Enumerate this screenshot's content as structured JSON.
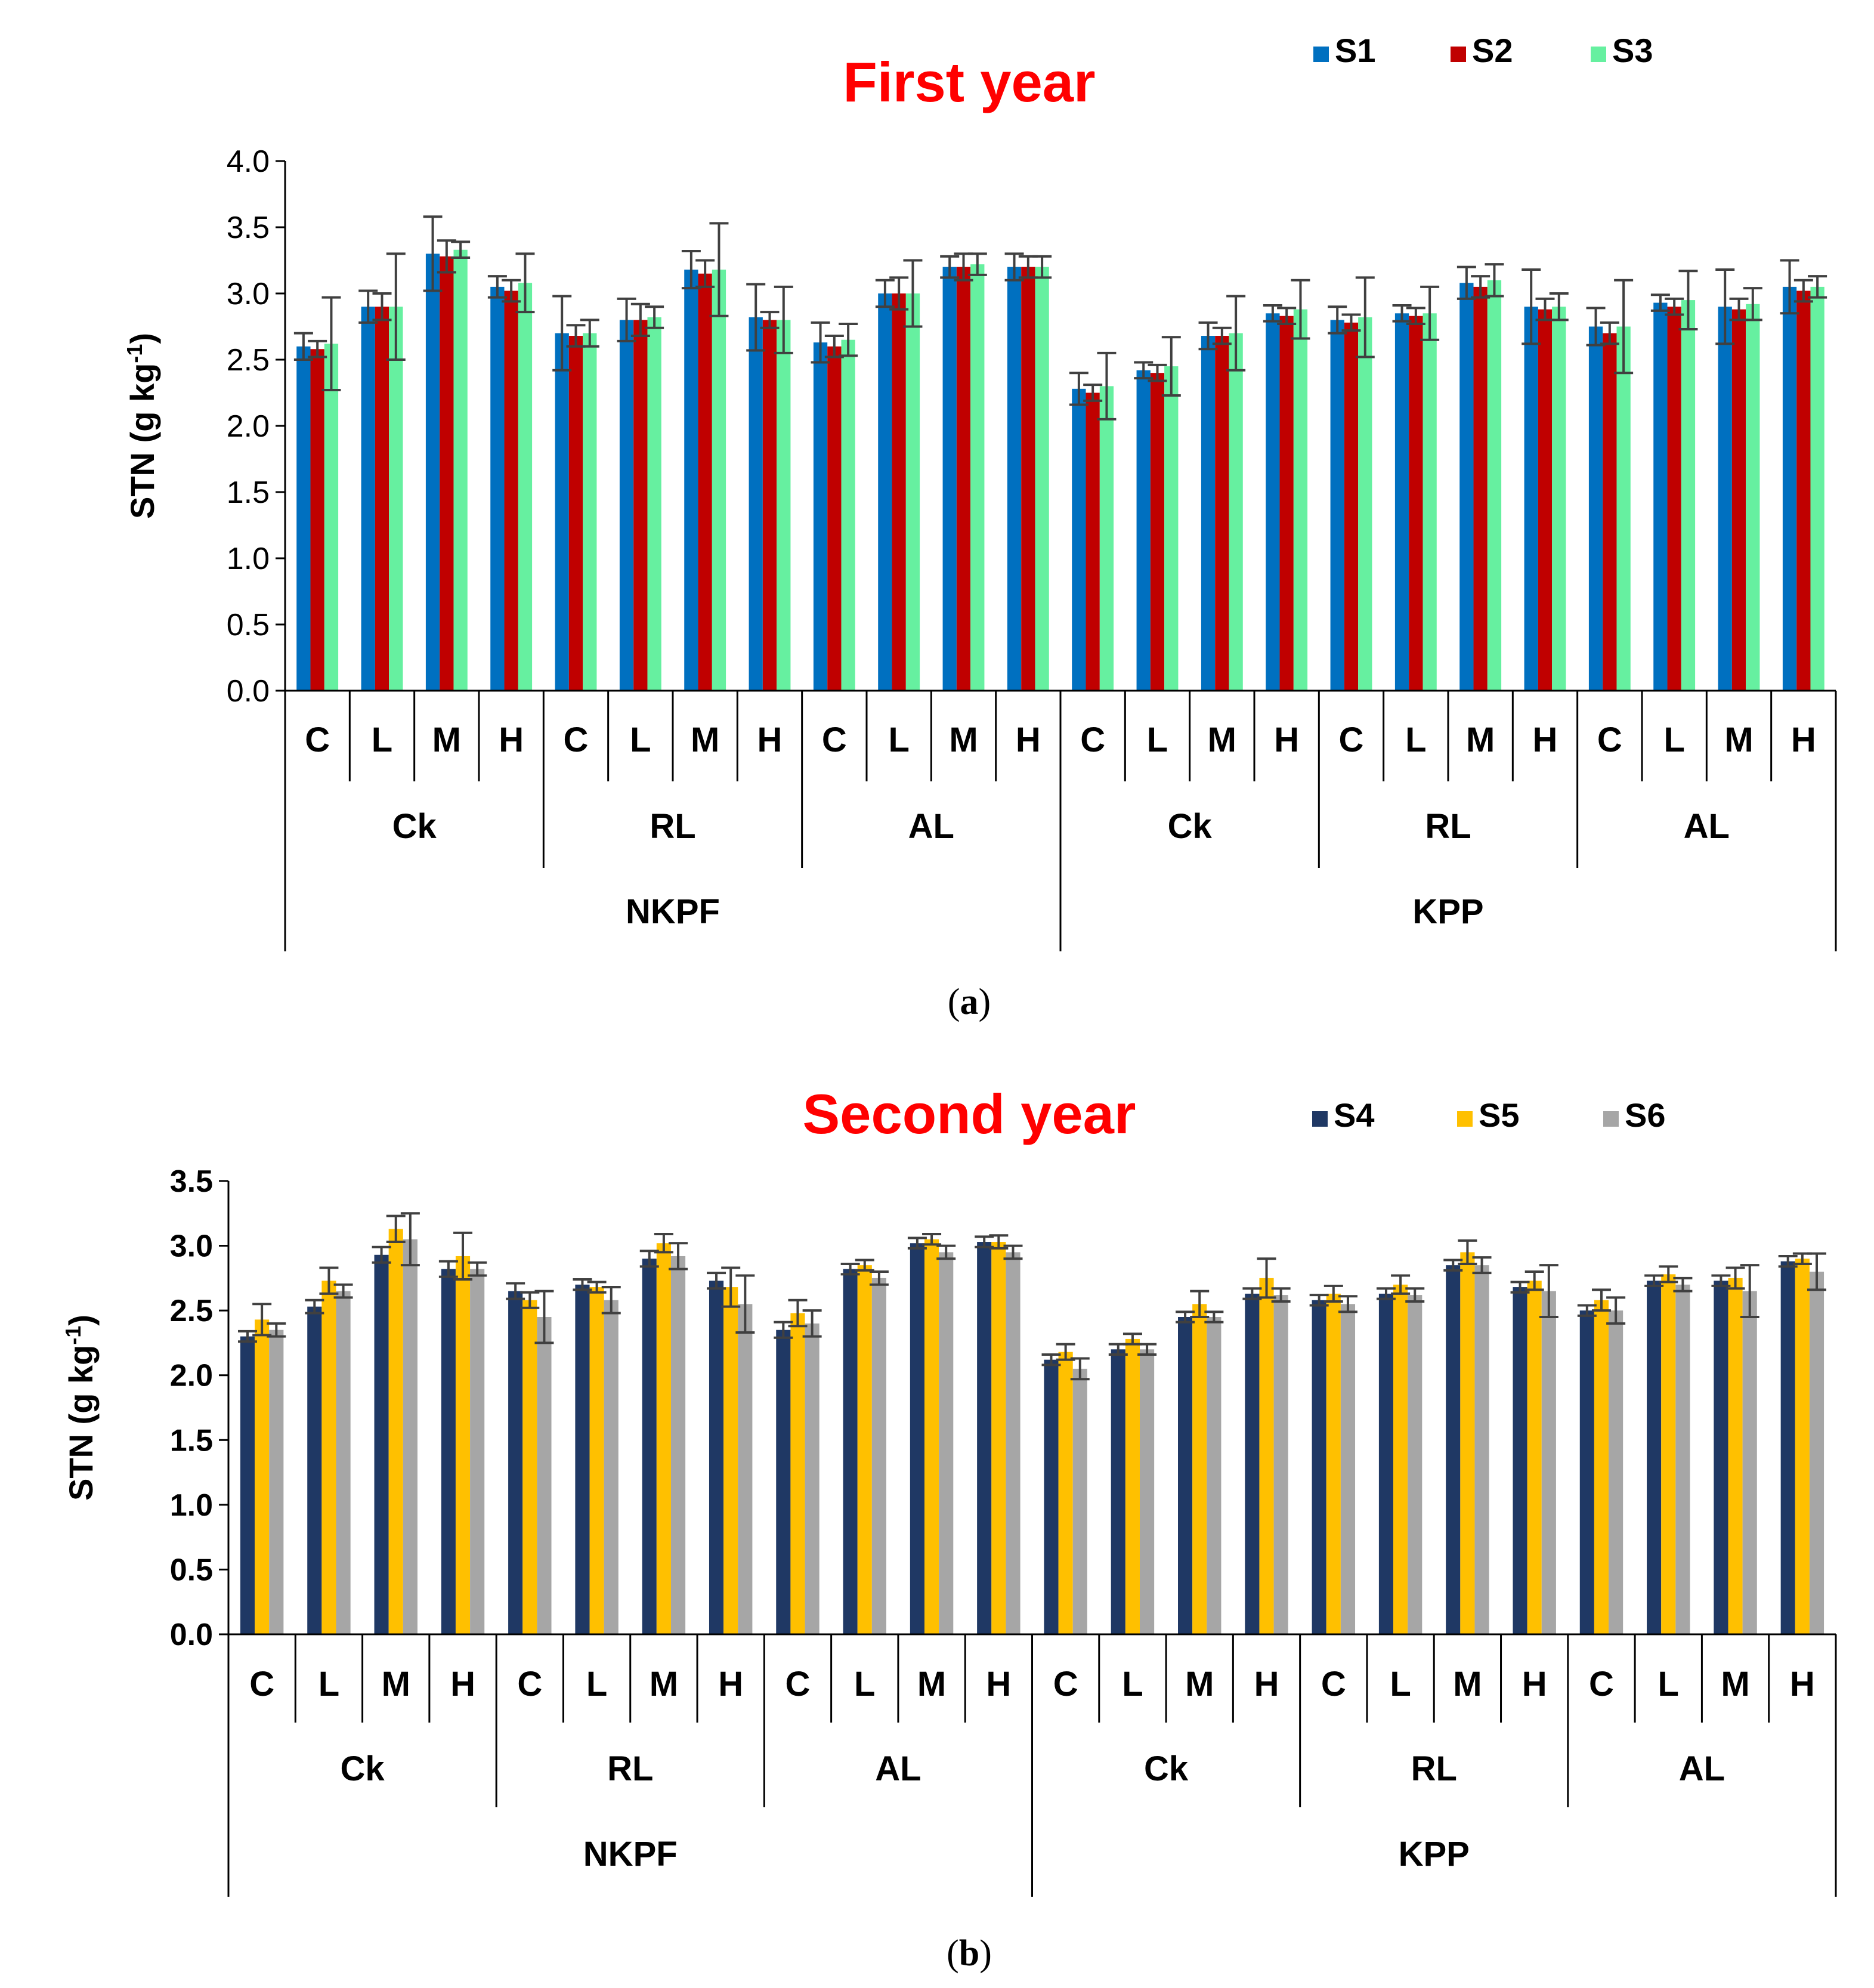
{
  "chart_data": [
    {
      "type": "bar",
      "panel_label": "a",
      "title": "First year",
      "ylabel": "STN (g kg",
      "ylabel_sup": "-1",
      "ylabel_close": ")",
      "ylim": [
        0,
        4.0
      ],
      "ytick_labels": [
        "0.0",
        "0.5",
        "1.0",
        "1.5",
        "2.0",
        "2.5",
        "3.0",
        "3.5",
        "4.0"
      ],
      "legend_position": "top-right",
      "level1": [
        "C",
        "L",
        "M",
        "H"
      ],
      "level2": [
        "Ck",
        "RL",
        "AL"
      ],
      "level3": [
        "NKPF",
        "KPP"
      ],
      "series": [
        {
          "name": "S1",
          "color": "#0070c0",
          "values": [
            2.6,
            2.9,
            3.3,
            3.05,
            2.7,
            2.8,
            3.18,
            2.82,
            2.63,
            3.0,
            3.2,
            3.2,
            2.28,
            2.42,
            2.68,
            2.85,
            2.8,
            2.85,
            3.08,
            2.9,
            2.75,
            2.93,
            2.9,
            3.05
          ],
          "errors": [
            0.1,
            0.12,
            0.28,
            0.08,
            0.28,
            0.16,
            0.14,
            0.25,
            0.15,
            0.1,
            0.08,
            0.1,
            0.12,
            0.06,
            0.1,
            0.06,
            0.1,
            0.06,
            0.12,
            0.28,
            0.14,
            0.06,
            0.28,
            0.2
          ]
        },
        {
          "name": "S2",
          "color": "#c00000",
          "values": [
            2.58,
            2.9,
            3.28,
            3.02,
            2.68,
            2.8,
            3.15,
            2.8,
            2.6,
            3.0,
            3.2,
            3.2,
            2.25,
            2.4,
            2.68,
            2.83,
            2.78,
            2.83,
            3.05,
            2.88,
            2.7,
            2.9,
            2.88,
            3.02
          ],
          "errors": [
            0.06,
            0.1,
            0.12,
            0.08,
            0.08,
            0.12,
            0.1,
            0.06,
            0.08,
            0.12,
            0.1,
            0.08,
            0.06,
            0.06,
            0.06,
            0.06,
            0.06,
            0.06,
            0.08,
            0.08,
            0.08,
            0.06,
            0.08,
            0.08
          ]
        },
        {
          "name": "S3",
          "color": "#66f0a0",
          "values": [
            2.62,
            2.9,
            3.33,
            3.08,
            2.7,
            2.82,
            3.18,
            2.8,
            2.65,
            3.0,
            3.22,
            3.2,
            2.3,
            2.45,
            2.7,
            2.88,
            2.82,
            2.85,
            3.1,
            2.9,
            2.75,
            2.95,
            2.92,
            3.05
          ],
          "errors": [
            0.35,
            0.4,
            0.06,
            0.22,
            0.1,
            0.08,
            0.35,
            0.25,
            0.12,
            0.25,
            0.08,
            0.08,
            0.25,
            0.22,
            0.28,
            0.22,
            0.3,
            0.2,
            0.12,
            0.1,
            0.35,
            0.22,
            0.12,
            0.08
          ]
        }
      ]
    },
    {
      "type": "bar",
      "panel_label": "b",
      "title": "Second year",
      "ylabel": "STN (g kg",
      "ylabel_sup": "-1",
      "ylabel_close": ")",
      "ylim": [
        0,
        3.5
      ],
      "ytick_labels": [
        "0.0",
        "0.5",
        "1.0",
        "1.5",
        "2.0",
        "2.5",
        "3.0",
        "3.5"
      ],
      "legend_position": "top-right",
      "level1": [
        "C",
        "L",
        "M",
        "H"
      ],
      "level2": [
        "Ck",
        "RL",
        "AL"
      ],
      "level3": [
        "NKPF",
        "KPP"
      ],
      "series": [
        {
          "name": "S4",
          "color": "#1f3864",
          "values": [
            2.3,
            2.53,
            2.93,
            2.82,
            2.65,
            2.7,
            2.9,
            2.73,
            2.35,
            2.82,
            3.02,
            3.03,
            2.12,
            2.2,
            2.45,
            2.63,
            2.58,
            2.63,
            2.85,
            2.68,
            2.5,
            2.73,
            2.73,
            2.88
          ],
          "errors": [
            0.04,
            0.05,
            0.06,
            0.06,
            0.06,
            0.04,
            0.06,
            0.06,
            0.06,
            0.04,
            0.04,
            0.04,
            0.04,
            0.04,
            0.04,
            0.04,
            0.04,
            0.04,
            0.04,
            0.04,
            0.04,
            0.04,
            0.04,
            0.04
          ]
        },
        {
          "name": "S5",
          "color": "#ffc000",
          "values": [
            2.43,
            2.73,
            3.13,
            2.92,
            2.58,
            2.68,
            3.02,
            2.68,
            2.48,
            2.85,
            3.05,
            3.03,
            2.18,
            2.28,
            2.55,
            2.75,
            2.63,
            2.7,
            2.95,
            2.73,
            2.58,
            2.78,
            2.75,
            2.9
          ],
          "errors": [
            0.12,
            0.1,
            0.1,
            0.18,
            0.06,
            0.04,
            0.07,
            0.15,
            0.1,
            0.04,
            0.04,
            0.05,
            0.06,
            0.04,
            0.1,
            0.15,
            0.06,
            0.07,
            0.09,
            0.07,
            0.08,
            0.06,
            0.08,
            0.04
          ]
        },
        {
          "name": "S6",
          "color": "#a6a6a6",
          "values": [
            2.35,
            2.65,
            3.05,
            2.82,
            2.45,
            2.58,
            2.92,
            2.55,
            2.4,
            2.75,
            2.95,
            2.95,
            2.05,
            2.2,
            2.45,
            2.62,
            2.55,
            2.62,
            2.85,
            2.65,
            2.5,
            2.7,
            2.65,
            2.8
          ],
          "errors": [
            0.05,
            0.05,
            0.2,
            0.05,
            0.2,
            0.1,
            0.1,
            0.22,
            0.1,
            0.05,
            0.05,
            0.05,
            0.08,
            0.04,
            0.04,
            0.05,
            0.06,
            0.05,
            0.06,
            0.2,
            0.1,
            0.05,
            0.2,
            0.14
          ]
        }
      ]
    }
  ]
}
